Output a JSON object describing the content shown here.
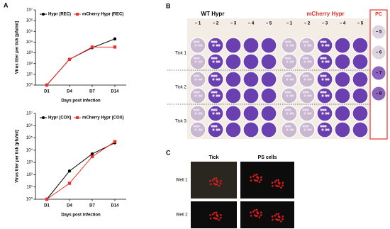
{
  "panel_labels": [
    "A",
    "B",
    "C"
  ],
  "chart_data": [
    {
      "type": "line",
      "y_label": "Virus titer per tick [pfu/ml]",
      "x_label": "Days post infection",
      "categories": [
        "D1",
        "D4",
        "D7",
        "D14"
      ],
      "series": [
        {
          "name": "Hypr (REC)",
          "color": "#000000",
          "marker": "circle",
          "values": [
            1,
            250,
            3000,
            20000
          ]
        },
        {
          "name": "mCherry Hypr (REC)",
          "color": "#e8312a",
          "marker": "square",
          "values": [
            1,
            250,
            3500,
            3500
          ]
        }
      ],
      "log_scale": true,
      "ylim": [
        1,
        10000000
      ],
      "yticks": [
        {
          "value": 1,
          "label": "10⁰"
        },
        {
          "value": 10,
          "label": "10¹"
        },
        {
          "value": 100,
          "label": "10²"
        },
        {
          "value": 1000,
          "label": "10³"
        },
        {
          "value": 10000,
          "label": "10⁴"
        },
        {
          "value": 100000,
          "label": "10⁵"
        },
        {
          "value": 1000000,
          "label": "10⁶"
        },
        {
          "value": 10000000,
          "label": "10⁷"
        }
      ],
      "legend": "top-left"
    },
    {
      "type": "line",
      "y_label": "Virus titer per tick [pfu/ml]",
      "x_label": "Days post infection",
      "categories": [
        "D1",
        "D4",
        "D7",
        "D14"
      ],
      "series": [
        {
          "name": "Hypr (COX)",
          "color": "#000000",
          "marker": "circle",
          "values": [
            1,
            200,
            5000,
            40000
          ]
        },
        {
          "name": "mCherry Hypr (COX)",
          "color": "#e8312a",
          "marker": "square",
          "values": [
            1,
            20,
            3000,
            50000
          ]
        }
      ],
      "log_scale": true,
      "ylim": [
        1,
        10000000
      ],
      "yticks": [
        {
          "value": 1,
          "label": "10⁰"
        },
        {
          "value": 10,
          "label": "10¹"
        },
        {
          "value": 100,
          "label": "10²"
        },
        {
          "value": 1000,
          "label": "10³"
        },
        {
          "value": 10000,
          "label": "10⁴"
        },
        {
          "value": 100000,
          "label": "10⁵"
        },
        {
          "value": 1000000,
          "label": "10⁶"
        },
        {
          "value": 10000000,
          "label": "10⁷"
        }
      ],
      "legend": "top-left"
    }
  ],
  "plaque_assay": {
    "groups": [
      "WT Hypr",
      "mCherry Hypr"
    ],
    "dilutions": [
      "− 1",
      "− 2",
      "− 3",
      "− 4",
      "− 5"
    ],
    "rows": [
      "Tick 1",
      "Tick 2",
      "Tick 3"
    ],
    "control": {
      "title": "PC",
      "dilutions": [
        "− 5",
        "− 6",
        "− 7",
        "− 8"
      ]
    }
  },
  "fluorescence": {
    "columns": [
      "Tick",
      "PS cells"
    ],
    "rows": [
      "Well 1",
      "Well 2"
    ]
  }
}
